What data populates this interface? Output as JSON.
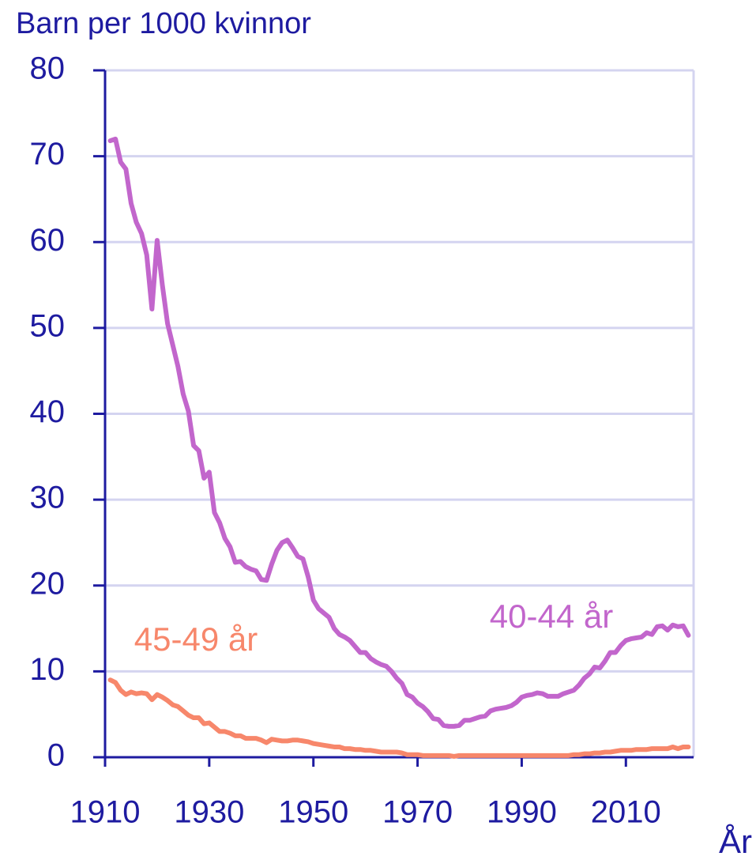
{
  "chart_data": {
    "type": "line",
    "y_label": "Barn per 1000 kvinnor",
    "x_label": "År",
    "x": [
      1911,
      1912,
      1913,
      1914,
      1915,
      1916,
      1917,
      1918,
      1919,
      1920,
      1921,
      1922,
      1923,
      1924,
      1925,
      1926,
      1927,
      1928,
      1929,
      1930,
      1931,
      1932,
      1933,
      1934,
      1935,
      1936,
      1937,
      1938,
      1939,
      1940,
      1941,
      1942,
      1943,
      1944,
      1945,
      1946,
      1947,
      1948,
      1949,
      1950,
      1951,
      1952,
      1953,
      1954,
      1955,
      1956,
      1957,
      1958,
      1959,
      1960,
      1961,
      1962,
      1963,
      1964,
      1965,
      1966,
      1967,
      1968,
      1969,
      1970,
      1971,
      1972,
      1973,
      1974,
      1975,
      1976,
      1977,
      1978,
      1979,
      1980,
      1981,
      1982,
      1983,
      1984,
      1985,
      1986,
      1987,
      1988,
      1989,
      1990,
      1991,
      1992,
      1993,
      1994,
      1995,
      1996,
      1997,
      1998,
      1999,
      2000,
      2001,
      2002,
      2003,
      2004,
      2005,
      2006,
      2007,
      2008,
      2009,
      2010,
      2011,
      2012,
      2013,
      2014,
      2015,
      2016,
      2017,
      2018,
      2019,
      2020,
      2021,
      2022
    ],
    "series": [
      {
        "name": "40-44 år",
        "color": "#c266cc",
        "values": [
          71.8,
          72.0,
          69.3,
          68.5,
          64.5,
          62.3,
          61.0,
          58.5,
          52.2,
          60.2,
          55.0,
          50.5,
          48.0,
          45.5,
          42.3,
          40.3,
          36.3,
          35.7,
          32.5,
          33.2,
          28.5,
          27.3,
          25.5,
          24.5,
          22.7,
          22.8,
          22.2,
          21.9,
          21.7,
          20.7,
          20.6,
          22.5,
          24.1,
          25.0,
          25.3,
          24.4,
          23.4,
          23.1,
          21.0,
          18.3,
          17.3,
          16.8,
          16.3,
          15.0,
          14.3,
          14.0,
          13.6,
          12.9,
          12.2,
          12.2,
          11.5,
          11.1,
          10.8,
          10.6,
          10.0,
          9.2,
          8.6,
          7.3,
          7.0,
          6.3,
          5.9,
          5.3,
          4.5,
          4.4,
          3.7,
          3.6,
          3.6,
          3.7,
          4.3,
          4.3,
          4.5,
          4.7,
          4.8,
          5.4,
          5.6,
          5.7,
          5.8,
          6.0,
          6.4,
          7.0,
          7.2,
          7.3,
          7.5,
          7.4,
          7.1,
          7.1,
          7.1,
          7.4,
          7.6,
          7.8,
          8.4,
          9.2,
          9.7,
          10.5,
          10.4,
          11.2,
          12.2,
          12.2,
          13.0,
          13.6,
          13.8,
          13.9,
          14.0,
          14.5,
          14.3,
          15.2,
          15.3,
          14.8,
          15.4,
          15.2,
          15.3,
          14.2
        ]
      },
      {
        "name": "45-49 år",
        "color": "#f7876b",
        "values": [
          9.0,
          8.7,
          7.8,
          7.3,
          7.6,
          7.4,
          7.5,
          7.4,
          6.7,
          7.3,
          7.0,
          6.6,
          6.1,
          5.9,
          5.4,
          4.9,
          4.6,
          4.6,
          3.9,
          4.0,
          3.5,
          3.0,
          3.0,
          2.8,
          2.5,
          2.5,
          2.2,
          2.2,
          2.2,
          2.0,
          1.7,
          2.1,
          2.0,
          1.9,
          1.9,
          2.0,
          2.0,
          1.9,
          1.8,
          1.6,
          1.5,
          1.4,
          1.3,
          1.2,
          1.2,
          1.0,
          1.0,
          0.9,
          0.9,
          0.8,
          0.8,
          0.7,
          0.6,
          0.6,
          0.6,
          0.6,
          0.5,
          0.3,
          0.3,
          0.3,
          0.2,
          0.2,
          0.2,
          0.2,
          0.2,
          0.2,
          0.1,
          0.2,
          0.2,
          0.2,
          0.2,
          0.2,
          0.2,
          0.2,
          0.2,
          0.2,
          0.2,
          0.2,
          0.2,
          0.2,
          0.2,
          0.2,
          0.2,
          0.2,
          0.2,
          0.2,
          0.2,
          0.2,
          0.2,
          0.3,
          0.3,
          0.4,
          0.4,
          0.5,
          0.5,
          0.6,
          0.6,
          0.7,
          0.8,
          0.8,
          0.8,
          0.9,
          0.9,
          0.9,
          1.0,
          1.0,
          1.0,
          1.0,
          1.2,
          1.0,
          1.2,
          1.2
        ]
      }
    ],
    "xlim": [
      1910,
      2023
    ],
    "xticks": [
      1910,
      1930,
      1950,
      1970,
      1990,
      2010
    ],
    "ylim": [
      0,
      80
    ],
    "yticks": [
      0,
      10,
      20,
      30,
      40,
      50,
      60,
      70,
      80
    ],
    "grid": true
  }
}
